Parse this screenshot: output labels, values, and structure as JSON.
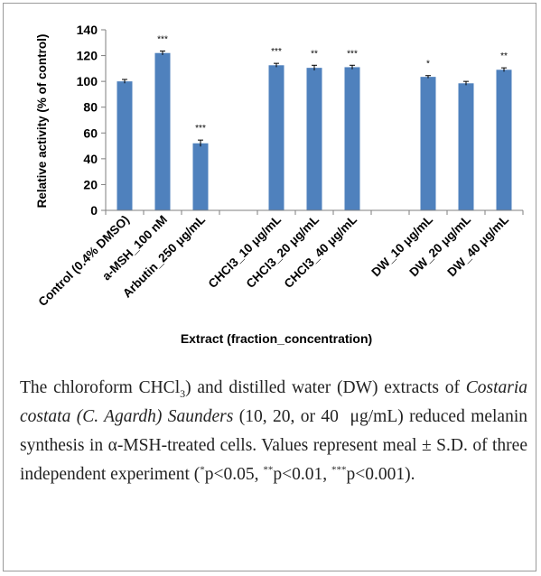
{
  "chart_data": {
    "type": "bar",
    "title": "",
    "xlabel": "Extract  (fraction_concentration)",
    "ylabel": "Relative activity (% of control)",
    "ylim": [
      0,
      140
    ],
    "yticks": [
      0,
      20,
      40,
      60,
      80,
      100,
      120,
      140
    ],
    "grid": false,
    "legend": "none",
    "bar_color": "#4f81bd",
    "categories": [
      "Control (0.4% DMSO)",
      "a-MSH_100 nM",
      "Arbutin_250 μg/mL",
      "",
      "CHCl3_10 μg/mL",
      "CHCl3_20 μg/mL",
      "CHCl3_40 μg/mL",
      "",
      "DW_10 μg/mL",
      "DW_20 μg/mL",
      "DW_40 μg/mL"
    ],
    "values": [
      100,
      122,
      52,
      null,
      112.5,
      110.5,
      111,
      null,
      103.5,
      98.5,
      109
    ],
    "errors": [
      1.5,
      1.5,
      2.5,
      null,
      1.5,
      2,
      1.5,
      null,
      1,
      1.5,
      1.5
    ],
    "annotations": [
      "",
      "***",
      "***",
      "",
      "***",
      "**",
      "***",
      "",
      "*",
      "",
      "**"
    ]
  },
  "caption": {
    "part1": "The chloroform CHCl",
    "sub3": "3",
    "part2": ") and distilled water (DW) extracts of ",
    "species": "Costaria costata",
    "authority": "(C. Agardh) Saunders",
    "part3": "(10, 20, or 40  μg/mL) reduced melanin synthesis in α-MSH-treated cells. Values represent meal ± S.D. of three independent experiment (",
    "sig1_mark": "*",
    "sig1": "p<0.05, ",
    "sig2_mark": "**",
    "sig2": "p<0.01, ",
    "sig3_mark": "***",
    "sig3": "p<0.001)."
  }
}
